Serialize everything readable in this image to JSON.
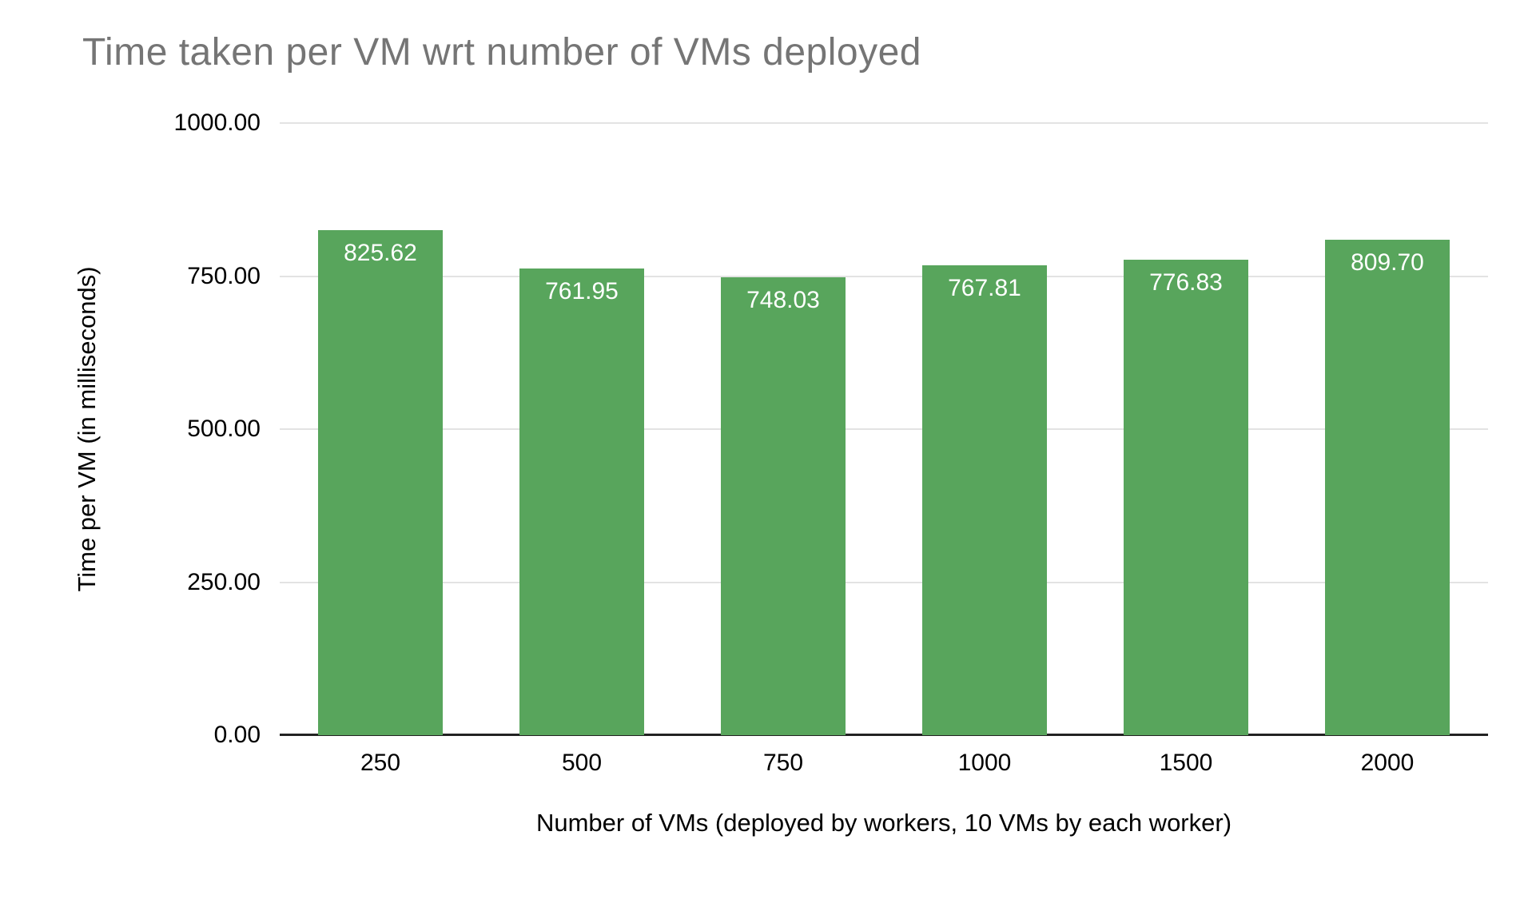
{
  "chart_data": {
    "type": "bar",
    "title": "Time taken per VM wrt number of VMs deployed",
    "categories": [
      "250",
      "500",
      "750",
      "1000",
      "1500",
      "2000"
    ],
    "values": [
      825.62,
      761.95,
      748.03,
      767.81,
      776.83,
      809.7
    ],
    "value_labels": [
      "825.62",
      "761.95",
      "748.03",
      "767.81",
      "776.83",
      "809.70"
    ],
    "xlabel": "Number of VMs (deployed by workers, 10 VMs by each worker)",
    "ylabel": "Time per VM (in milliseconds)",
    "ylim": [
      0,
      1000
    ],
    "ytick_step": 250,
    "ytick_labels": [
      "0.00",
      "250.00",
      "500.00",
      "750.00",
      "1000.00"
    ],
    "grid": true,
    "legend": "none",
    "colors": {
      "bar": "#58a55c",
      "bar_label": "#ffffff",
      "title": "#757575",
      "axis_text": "#000000",
      "gridline": "#e3e3e3",
      "baseline": "#222222",
      "background": "#ffffff"
    }
  }
}
